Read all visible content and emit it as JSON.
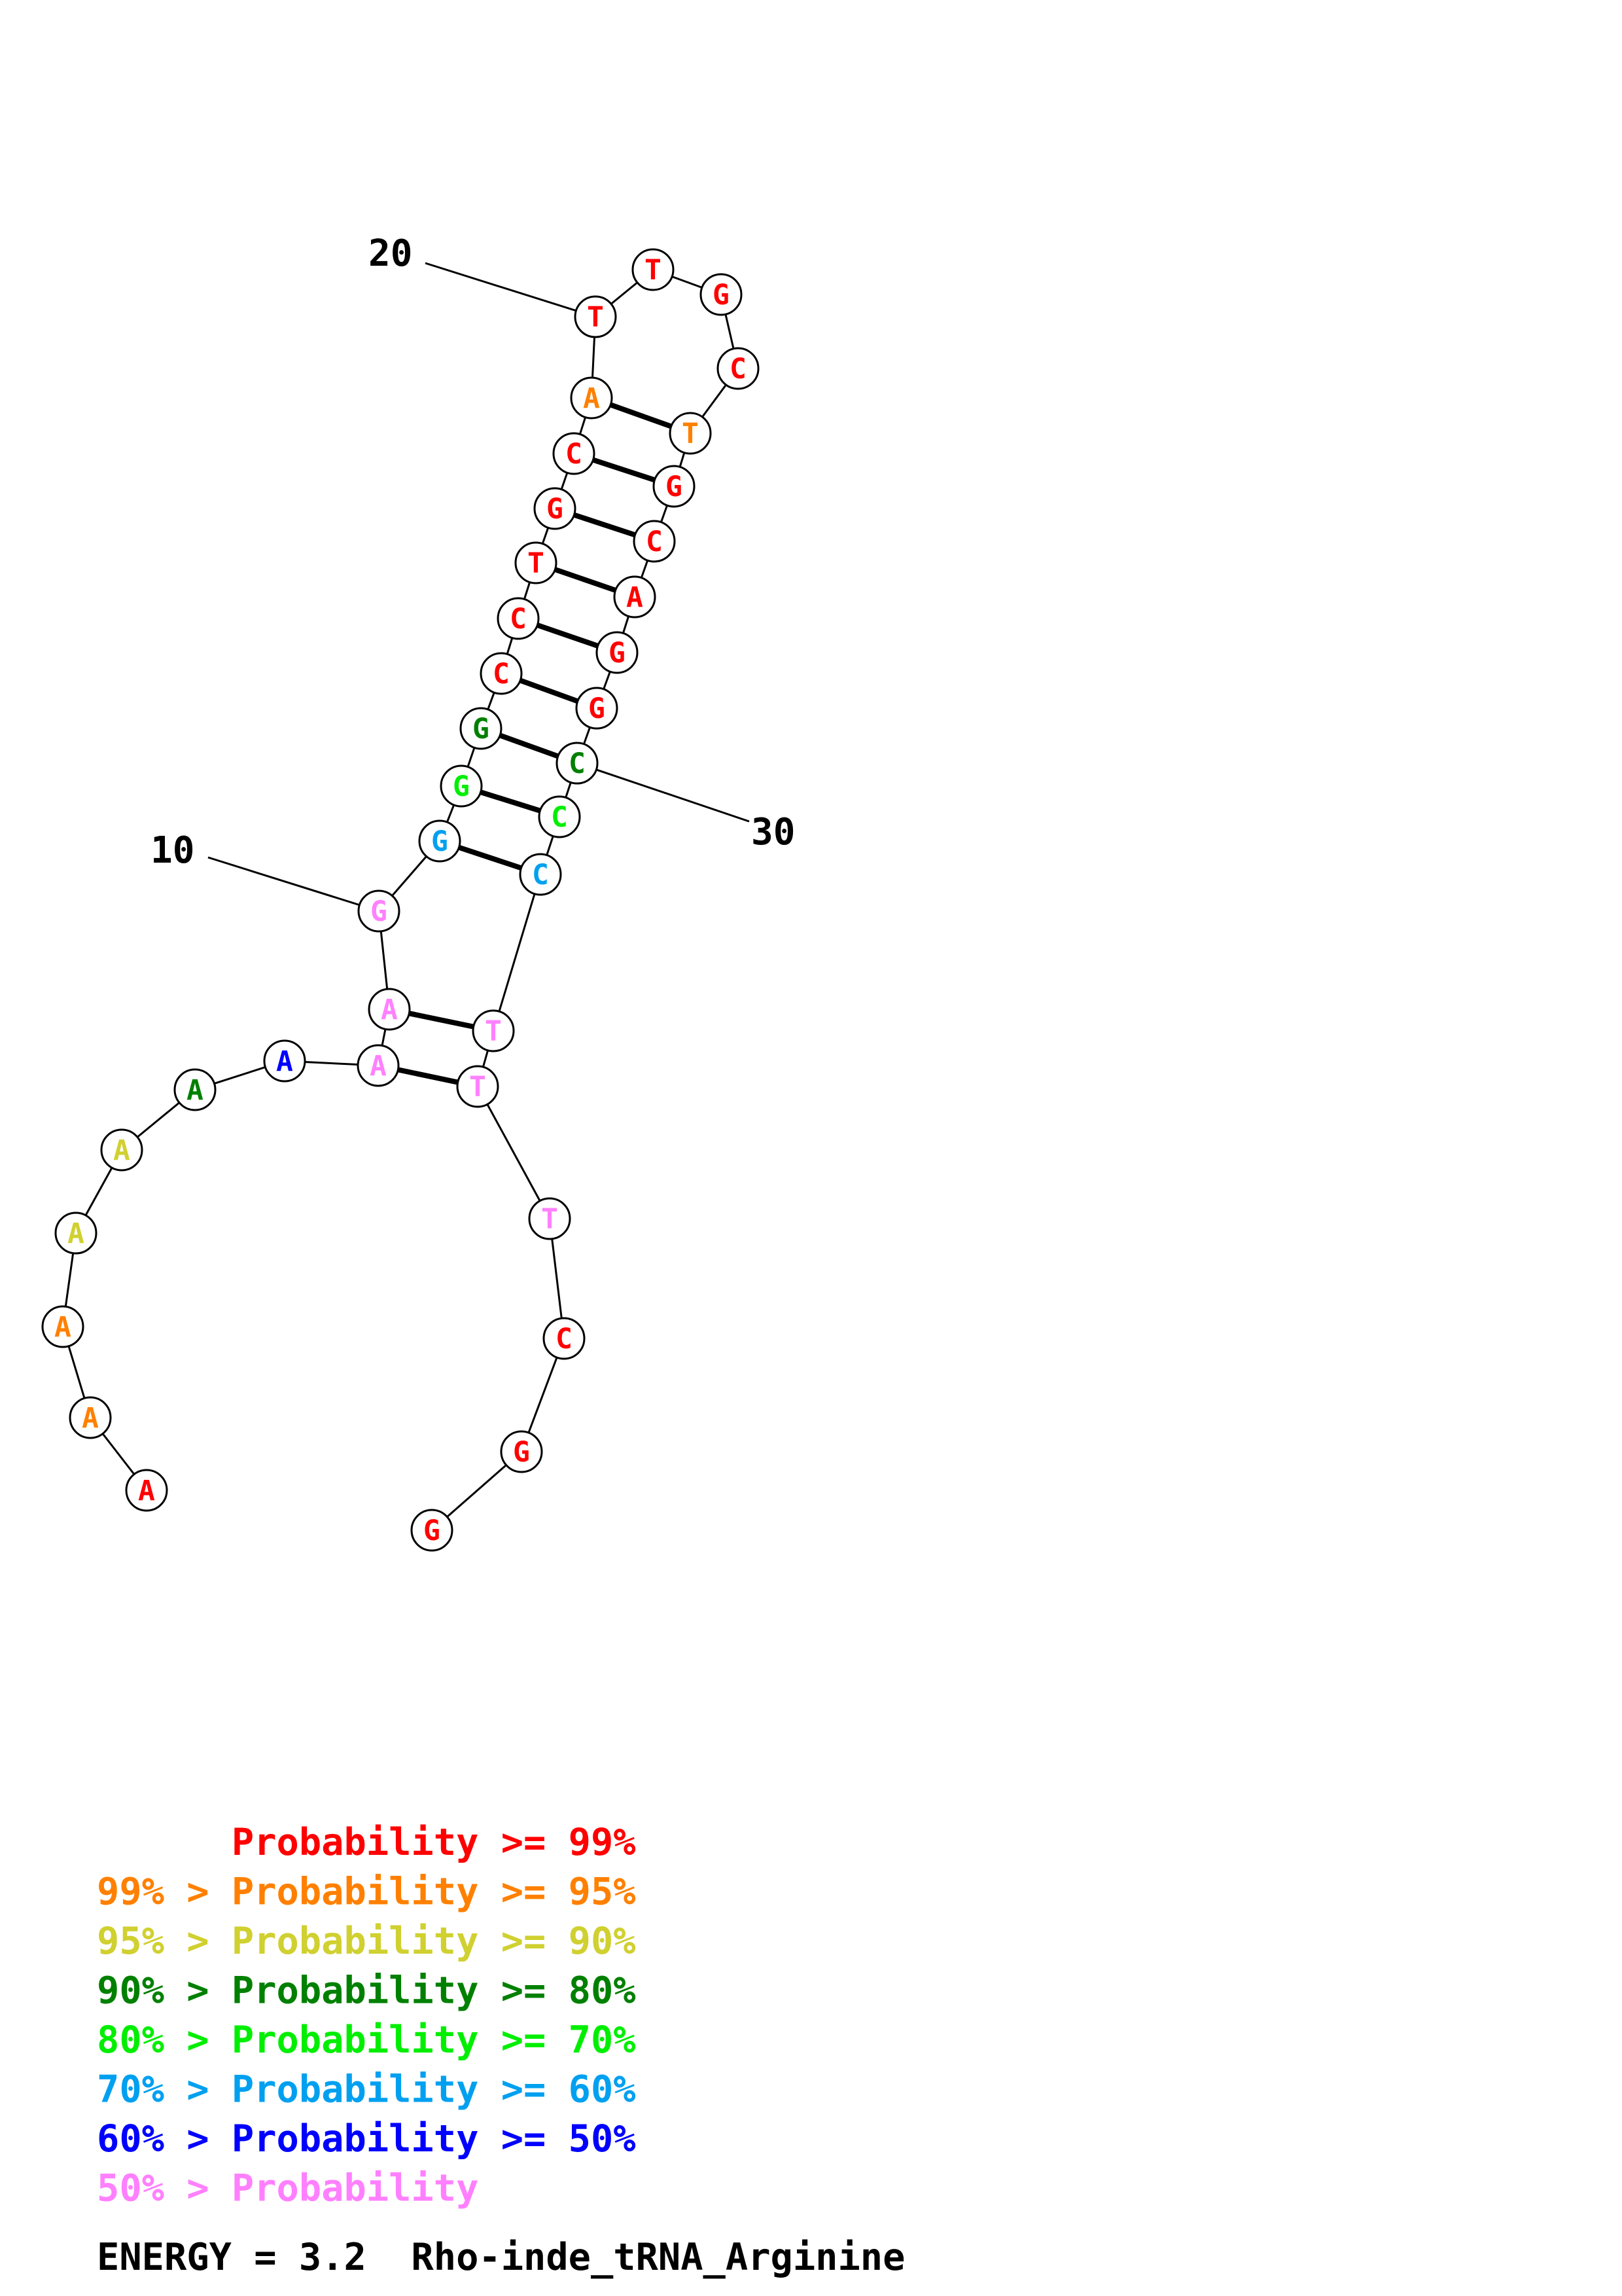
{
  "colors": {
    "p99": "#ff0000",
    "p95": "#ff8000",
    "p90": "#d0d030",
    "p80": "#008000",
    "p70": "#00ee00",
    "p60": "#00a0f0",
    "p50": "#0000ff",
    "plow": "#ff80ff"
  },
  "nucleotides": [
    {
      "base": "A",
      "prob": "p99"
    },
    {
      "base": "A",
      "prob": "p95"
    },
    {
      "base": "A",
      "prob": "p95"
    },
    {
      "base": "A",
      "prob": "p90"
    },
    {
      "base": "A",
      "prob": "p90"
    },
    {
      "base": "A",
      "prob": "p80"
    },
    {
      "base": "A",
      "prob": "p50"
    },
    {
      "base": "A",
      "prob": "plow"
    },
    {
      "base": "A",
      "prob": "plow"
    },
    {
      "base": "G",
      "prob": "plow"
    },
    {
      "base": "G",
      "prob": "p60"
    },
    {
      "base": "G",
      "prob": "p70"
    },
    {
      "base": "G",
      "prob": "p80"
    },
    {
      "base": "C",
      "prob": "p99"
    },
    {
      "base": "C",
      "prob": "p99"
    },
    {
      "base": "T",
      "prob": "p99"
    },
    {
      "base": "G",
      "prob": "p99"
    },
    {
      "base": "C",
      "prob": "p99"
    },
    {
      "base": "A",
      "prob": "p95"
    },
    {
      "base": "T",
      "prob": "p99"
    },
    {
      "base": "T",
      "prob": "p99"
    },
    {
      "base": "G",
      "prob": "p99"
    },
    {
      "base": "C",
      "prob": "p99"
    },
    {
      "base": "T",
      "prob": "p95"
    },
    {
      "base": "G",
      "prob": "p99"
    },
    {
      "base": "C",
      "prob": "p99"
    },
    {
      "base": "A",
      "prob": "p99"
    },
    {
      "base": "G",
      "prob": "p99"
    },
    {
      "base": "G",
      "prob": "p99"
    },
    {
      "base": "C",
      "prob": "p80"
    },
    {
      "base": "C",
      "prob": "p70"
    },
    {
      "base": "C",
      "prob": "p60"
    },
    {
      "base": "T",
      "prob": "plow"
    },
    {
      "base": "T",
      "prob": "plow"
    },
    {
      "base": "T",
      "prob": "plow"
    },
    {
      "base": "C",
      "prob": "p99"
    },
    {
      "base": "G",
      "prob": "p99"
    },
    {
      "base": "G",
      "prob": "p99"
    }
  ],
  "pairs": [
    [
      8,
      34
    ],
    [
      9,
      33
    ],
    [
      11,
      32
    ],
    [
      12,
      31
    ],
    [
      13,
      30
    ],
    [
      14,
      29
    ],
    [
      15,
      28
    ],
    [
      16,
      27
    ],
    [
      17,
      26
    ],
    [
      18,
      25
    ],
    [
      19,
      24
    ]
  ],
  "position_labels": [
    {
      "text": "10",
      "index": 10
    },
    {
      "text": "20",
      "index": 20
    },
    {
      "text": "30",
      "index": 30
    }
  ],
  "legend": [
    {
      "text": "      Probability >= 99%",
      "color": "p99"
    },
    {
      "text": "99% > Probability >= 95%",
      "color": "p95"
    },
    {
      "text": "95% > Probability >= 90%",
      "color": "p90"
    },
    {
      "text": "90% > Probability >= 80%",
      "color": "p80"
    },
    {
      "text": "80% > Probability >= 70%",
      "color": "p70"
    },
    {
      "text": "70% > Probability >= 60%",
      "color": "p60"
    },
    {
      "text": "60% > Probability >= 50%",
      "color": "p50"
    },
    {
      "text": "50% > Probability",
      "color": "plow"
    }
  ],
  "footer": "ENERGY = 3.2  Rho-inde_tRNA_Arginine"
}
